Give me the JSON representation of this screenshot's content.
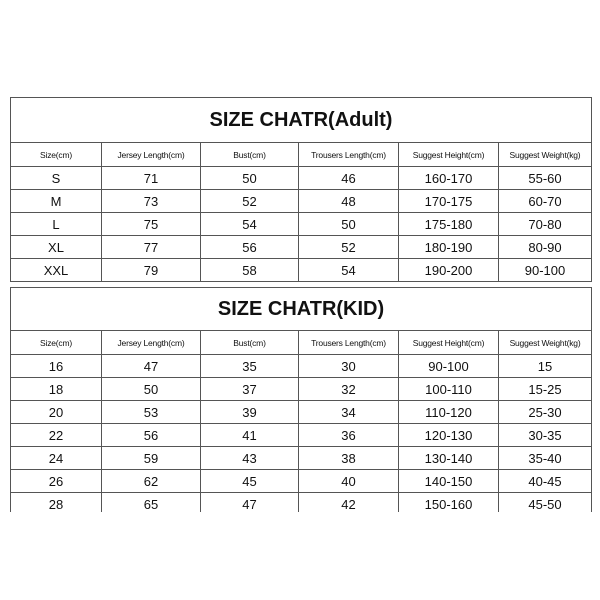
{
  "columns": [
    "Size(cm)",
    "Jersey Length(cm)",
    "Bust(cm)",
    "Trousers Length(cm)",
    "Suggest Height(cm)",
    "Suggest Weight(kg)"
  ],
  "adult": {
    "title": "SIZE CHATR(Adult)",
    "rows": [
      [
        "S",
        "71",
        "50",
        "46",
        "160-170",
        "55-60"
      ],
      [
        "M",
        "73",
        "52",
        "48",
        "170-175",
        "60-70"
      ],
      [
        "L",
        "75",
        "54",
        "50",
        "175-180",
        "70-80"
      ],
      [
        "XL",
        "77",
        "56",
        "52",
        "180-190",
        "80-90"
      ],
      [
        "XXL",
        "79",
        "58",
        "54",
        "190-200",
        "90-100"
      ]
    ]
  },
  "kid": {
    "title": "SIZE CHATR(KID)",
    "rows": [
      [
        "16",
        "47",
        "35",
        "30",
        "90-100",
        "15"
      ],
      [
        "18",
        "50",
        "37",
        "32",
        "100-110",
        "15-25"
      ],
      [
        "20",
        "53",
        "39",
        "34",
        "110-120",
        "25-30"
      ],
      [
        "22",
        "56",
        "41",
        "36",
        "120-130",
        "30-35"
      ],
      [
        "24",
        "59",
        "43",
        "38",
        "130-140",
        "35-40"
      ],
      [
        "26",
        "62",
        "45",
        "40",
        "140-150",
        "40-45"
      ],
      [
        "28",
        "65",
        "47",
        "42",
        "150-160",
        "45-50"
      ]
    ]
  }
}
